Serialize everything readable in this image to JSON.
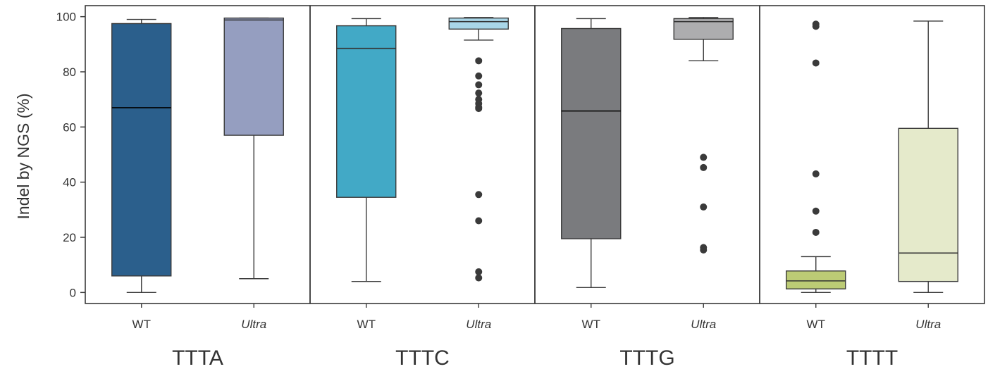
{
  "chart_data": {
    "type": "box",
    "ylabel": "Indel by NGS (%)",
    "ylim": [
      -4,
      104
    ],
    "yticks": [
      "0",
      "20",
      "40",
      "60",
      "80",
      "100"
    ],
    "grid": false,
    "groups": [
      {
        "name": "TTTA",
        "boxes": [
          {
            "label": "WT",
            "italic": false,
            "color": "#2b5f8c",
            "median_color": "#000000",
            "whisker_low": 0,
            "q1": 6,
            "median": 67,
            "q3": 97.5,
            "whisker_high": 99,
            "outliers": []
          },
          {
            "label": "Ultra",
            "italic": true,
            "color": "#959ec0",
            "median_color": "#333333",
            "whisker_low": 5,
            "q1": 57,
            "median": 98.8,
            "q3": 99.5,
            "whisker_high": 99.5,
            "outliers": []
          }
        ]
      },
      {
        "name": "TTTC",
        "boxes": [
          {
            "label": "WT",
            "italic": false,
            "color": "#42a9c6",
            "median_color": "#333333",
            "whisker_low": 4,
            "q1": 34.5,
            "median": 88.5,
            "q3": 96.7,
            "whisker_high": 99.3,
            "outliers": []
          },
          {
            "label": "Ultra",
            "italic": true,
            "color": "#a9d6e8",
            "median_color": "#333333",
            "whisker_low": 91.5,
            "q1": 95.5,
            "median": 98.2,
            "q3": 99.5,
            "whisker_high": 99.7,
            "outliers": [
              84,
              78.5,
              75.3,
              72.3,
              70,
              68.5,
              67.2,
              66.7,
              35.5,
              26,
              7.5,
              5.3
            ]
          }
        ]
      },
      {
        "name": "TTTG",
        "boxes": [
          {
            "label": "WT",
            "italic": false,
            "color": "#7a7b7e",
            "median_color": "#000000",
            "whisker_low": 1.8,
            "q1": 19.5,
            "median": 65.8,
            "q3": 95.7,
            "whisker_high": 99.3,
            "outliers": []
          },
          {
            "label": "Ultra",
            "italic": true,
            "color": "#adadaf",
            "median_color": "#333333",
            "whisker_low": 84,
            "q1": 91.8,
            "median": 98.2,
            "q3": 99.3,
            "whisker_high": 99.7,
            "outliers": [
              49,
              45.3,
              31,
              16.3,
              15.4
            ]
          }
        ]
      },
      {
        "name": "TTTT",
        "boxes": [
          {
            "label": "WT",
            "italic": false,
            "color": "#bccb75",
            "median_color": "#333333",
            "whisker_low": 0,
            "q1": 1.3,
            "median": 4.2,
            "q3": 7.8,
            "whisker_high": 13,
            "outliers": [
              97.3,
              96.5,
              83.2,
              43,
              29.5,
              21.8
            ]
          },
          {
            "label": "Ultra",
            "italic": true,
            "color": "#e5eacb",
            "median_color": "#333333",
            "whisker_low": 0,
            "q1": 4,
            "median": 14.3,
            "q3": 59.5,
            "whisker_high": 98.4,
            "outliers": []
          }
        ]
      }
    ]
  }
}
